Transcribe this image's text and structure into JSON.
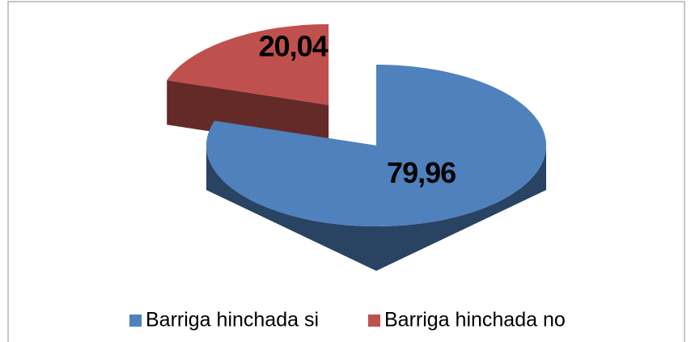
{
  "chart_data": {
    "type": "pie",
    "categories": [
      "Barriga hinchada si",
      "Barriga hinchada no"
    ],
    "values": [
      79.96,
      20.04
    ],
    "value_labels": [
      "79,96",
      "20,04"
    ],
    "colors": [
      "#4f81bd",
      "#c0504d"
    ],
    "legend": "bottom"
  }
}
